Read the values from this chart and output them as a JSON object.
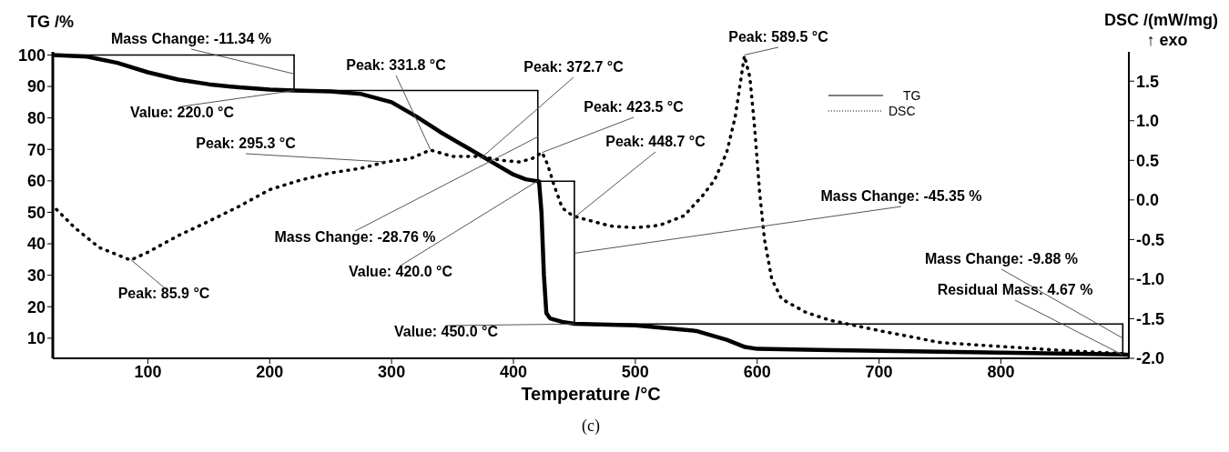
{
  "chart_data": {
    "type": "line",
    "xlabel": "Temperature /°C",
    "ylabel": "TG /%",
    "y2label": "DSC /(mW/mg)\n↑ exo",
    "xlim": [
      22,
      905
    ],
    "xticks": [
      100,
      200,
      300,
      400,
      500,
      600,
      700,
      800
    ],
    "ylim": [
      3.6,
      101
    ],
    "yticks": [
      10,
      20,
      30,
      40,
      50,
      60,
      70,
      80,
      90,
      100
    ],
    "y2lim": [
      -2.0,
      1.87
    ],
    "y2ticks": [
      {
        "value": -2,
        "label": "-2.0"
      },
      -1.5,
      {
        "value": -1,
        "label": "-1.0"
      },
      -0.5,
      {
        "value": 0,
        "label": "0.0"
      },
      0.5,
      {
        "value": 1,
        "label": "1.0"
      },
      1.5
    ],
    "legend": "top right",
    "marker": "none",
    "series": [
      {
        "name": "TG",
        "color": "#000000",
        "line_style": "solid",
        "x": [
          22,
          50,
          75,
          100,
          125,
          150,
          175,
          200,
          220,
          250,
          275,
          300,
          320,
          340,
          360,
          380,
          400,
          410,
          418,
          421,
          423,
          425,
          427,
          430,
          440,
          450,
          500,
          550,
          575,
          590,
          600,
          650,
          700,
          800,
          900,
          905
        ],
        "values": [
          100,
          99.5,
          97.5,
          94.5,
          92.2,
          90.7,
          89.7,
          89,
          88.7,
          88.4,
          87.6,
          85,
          80.5,
          75.5,
          71,
          66.5,
          62,
          60.5,
          60,
          59.8,
          50,
          30,
          18,
          16.3,
          15.2,
          14.6,
          14.1,
          12.3,
          9.5,
          7.2,
          6.6,
          6.3,
          6,
          5.4,
          4.8,
          4.7
        ]
      },
      {
        "name": "DSC",
        "color": "#000000",
        "line_style": "dotted",
        "axis": "y2",
        "x": [
          25,
          40,
          60,
          85.9,
          100,
          125,
          150,
          175,
          200,
          225,
          250,
          275,
          295.3,
          315,
          331.8,
          350,
          372.7,
          390,
          405,
          415,
          423.5,
          428,
          433,
          440,
          448.7,
          460,
          480,
          500,
          520,
          540,
          555,
          565,
          575,
          582,
          589.5,
          594,
          598,
          602,
          606,
          612,
          620,
          640,
          660,
          700,
          750,
          800,
          850,
          900
        ],
        "values": [
          -0.12,
          -0.35,
          -0.6,
          -0.76,
          -0.66,
          -0.45,
          -0.27,
          -0.08,
          0.13,
          0.25,
          0.34,
          0.4,
          0.48,
          0.52,
          0.63,
          0.55,
          0.55,
          0.5,
          0.48,
          0.52,
          0.6,
          0.45,
          0.2,
          -0.1,
          -0.2,
          -0.25,
          -0.33,
          -0.35,
          -0.32,
          -0.2,
          0.05,
          0.25,
          0.6,
          1.05,
          1.82,
          1.55,
          0.9,
          0.1,
          -0.5,
          -1.0,
          -1.25,
          -1.42,
          -1.52,
          -1.65,
          -1.8,
          -1.85,
          -1.9,
          -1.94
        ]
      },
      {
        "color": "#000000",
        "line_style": "solid",
        "x": [
          22,
          220
        ],
        "values": [
          100,
          100
        ]
      },
      {
        "color": "#000000",
        "line_style": "solid",
        "x": [
          220,
          220
        ],
        "values": [
          100,
          88.7
        ]
      },
      {
        "color": "#000000",
        "line_style": "solid",
        "x": [
          220,
          420
        ],
        "values": [
          88.7,
          88.7
        ]
      },
      {
        "color": "#000000",
        "line_style": "solid",
        "x": [
          420,
          420
        ],
        "values": [
          88.7,
          59.9
        ]
      },
      {
        "color": "#000000",
        "line_style": "solid",
        "x": [
          420,
          450
        ],
        "values": [
          59.9,
          59.9
        ]
      },
      {
        "color": "#000000",
        "line_style": "solid",
        "x": [
          450,
          450
        ],
        "values": [
          59.9,
          14.5
        ]
      },
      {
        "color": "#000000",
        "line_style": "solid",
        "x": [
          450,
          900
        ],
        "values": [
          14.5,
          14.5
        ]
      },
      {
        "color": "#000000",
        "line_style": "solid",
        "x": [
          900,
          900
        ],
        "values": [
          14.5,
          4.7
        ]
      }
    ],
    "annotations": [
      {
        "text": "Mass Change: -11.34 %",
        "x": 220,
        "y": 94
      },
      {
        "text": "Value: 220.0 °C",
        "x": 220,
        "y": 88.7
      },
      {
        "text": "Peak: 295.3 °C",
        "x": 295.3,
        "y": 66
      },
      {
        "text": "Peak: 85.9 °C",
        "x": 85.9,
        "y": 35
      },
      {
        "text": "Peak: 331.8 °C",
        "x": 331.8,
        "y": 70
      },
      {
        "text": "Peak: 372.7 °C",
        "x": 372.7,
        "y": 67
      },
      {
        "text": "Mass Change: -28.76 %",
        "x": 420,
        "y": 74
      },
      {
        "text": "Value: 420.0 °C",
        "x": 420,
        "y": 60
      },
      {
        "text": "Peak: 423.5 °C",
        "x": 423.5,
        "y": 69
      },
      {
        "text": "Peak: 448.7 °C",
        "x": 448.7,
        "y": 48
      },
      {
        "text": "Peak: 589.5 °C",
        "x": 589.5,
        "y": 100
      },
      {
        "text": "Mass Change: -45.35 %",
        "x": 450,
        "y": 37
      },
      {
        "text": "Value: 450.0 °C",
        "x": 450,
        "y": 14.5
      },
      {
        "text": "Mass Change: -9.88 %",
        "x": 900,
        "y": 10
      },
      {
        "text": "Residual Mass: 4.67 %",
        "x": 900,
        "y": 4.7
      },
      "(c)"
    ]
  }
}
